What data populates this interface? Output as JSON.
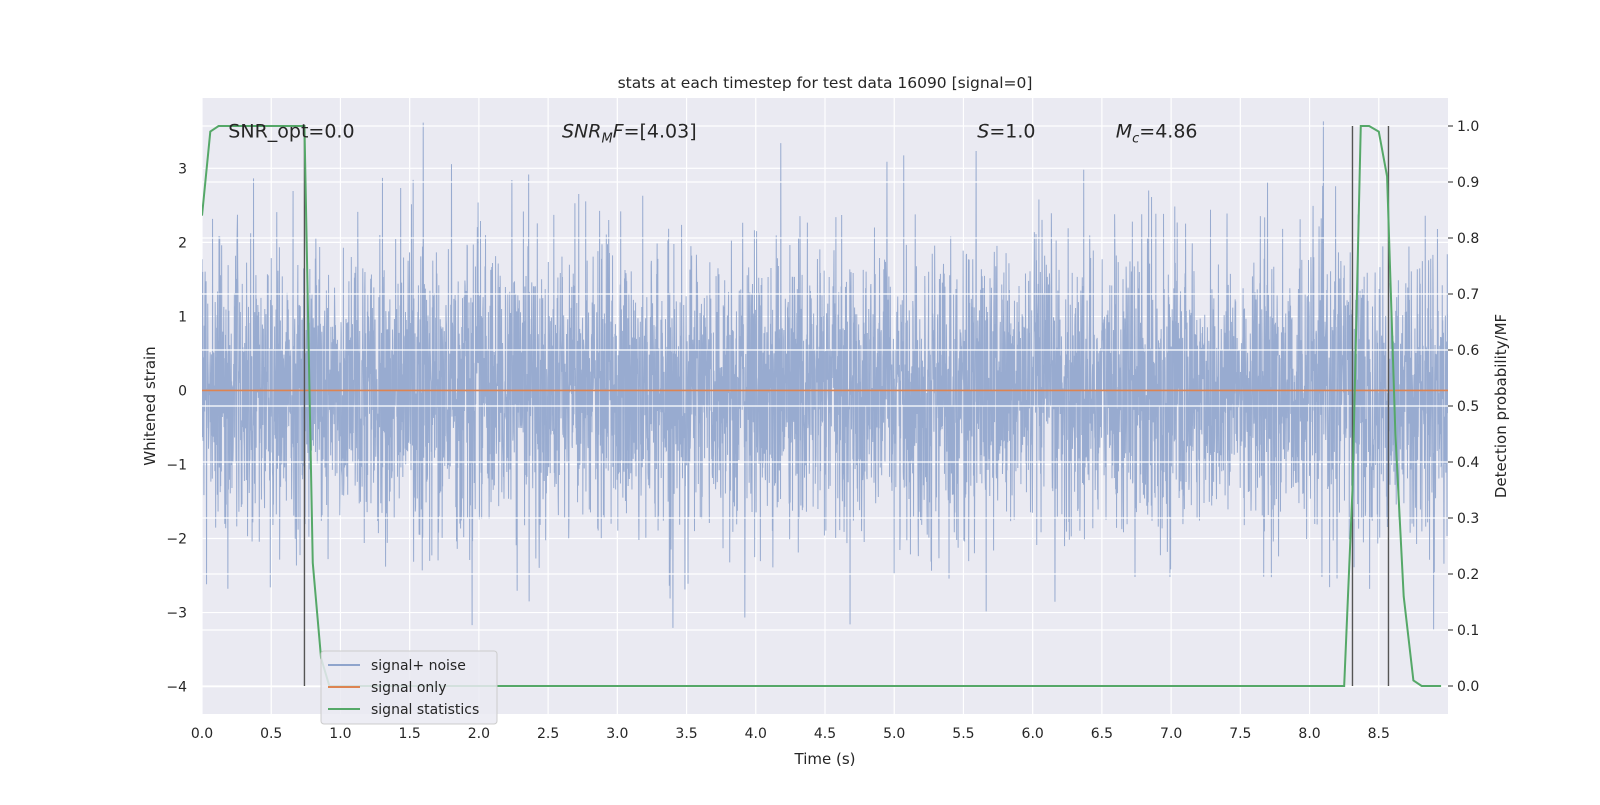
{
  "chart_data": {
    "type": "line",
    "title": "stats at each timestep for test data 16090 [signal=0]",
    "xlabel": "Time (s)",
    "ylabel_left": "Whitened strain",
    "ylabel_right": "Detection probability/MF",
    "xlim": [
      0.0,
      9.0
    ],
    "ylim_left": [
      -4.37,
      3.95
    ],
    "ylim_right": [
      -0.05,
      1.05
    ],
    "x_ticks": [
      "0.0",
      "0.5",
      "1.0",
      "1.5",
      "2.0",
      "2.5",
      "3.0",
      "3.5",
      "4.0",
      "4.5",
      "5.0",
      "5.5",
      "6.0",
      "6.5",
      "7.0",
      "7.5",
      "8.0",
      "8.5"
    ],
    "y_left_ticks": [
      "3",
      "2",
      "1",
      "0",
      "−1",
      "−2",
      "−3",
      "−4"
    ],
    "y_right_ticks": [
      "1.0",
      "0.9",
      "0.8",
      "0.7",
      "0.6",
      "0.5",
      "0.4",
      "0.3",
      "0.2",
      "0.1",
      "0.0"
    ],
    "grid": true,
    "legend_position": "lower-left",
    "annotations": [
      {
        "id": "snr-opt",
        "text": "SNR_opt=0.0",
        "pos": [
          0.19,
          3.5
        ]
      },
      {
        "id": "snr-mf",
        "text": "SNRMF=[4.03]",
        "main": "SNR",
        "sub": "M",
        "rest": "F=[4.03]",
        "italic": true,
        "pos": [
          2.6,
          3.5
        ]
      },
      {
        "id": "s-stat",
        "text": "S=1.0",
        "main": "S",
        "rest": "=1.0",
        "italic": true,
        "pos": [
          5.6,
          3.5
        ]
      },
      {
        "id": "mc",
        "text": "Mc=4.86",
        "main": "M",
        "sub": "c",
        "rest": "=4.86",
        "italic": true,
        "pos": [
          6.6,
          3.5
        ]
      }
    ],
    "vertical_markers": [
      0.74,
      8.31,
      8.57
    ],
    "series": [
      {
        "name": "signal+ noise",
        "color": "#8fa4cc",
        "axis": "left",
        "kind": "noise",
        "sigma": 0.95,
        "x_start": 0.0,
        "x_end": 9.0
      },
      {
        "name": "signal only",
        "color": "#dd8452",
        "axis": "left",
        "x": [
          0.0,
          9.0
        ],
        "y": [
          0.0,
          0.0
        ]
      },
      {
        "name": "signal statistics",
        "color": "#55a868",
        "axis": "right",
        "x": [
          0.0,
          0.06,
          0.12,
          0.19,
          0.25,
          0.31,
          0.38,
          0.44,
          0.5,
          0.56,
          0.62,
          0.69,
          0.74,
          0.8,
          0.86,
          0.92,
          1.0,
          2.0,
          3.0,
          4.0,
          5.0,
          6.0,
          7.0,
          8.0,
          8.25,
          8.31,
          8.37,
          8.43,
          8.5,
          8.56,
          8.62,
          8.68,
          8.75,
          8.81,
          8.87,
          8.95
        ],
        "y": [
          0.84,
          0.99,
          1.0,
          1.0,
          1.0,
          1.0,
          1.0,
          1.0,
          1.0,
          1.0,
          1.0,
          1.0,
          1.0,
          0.22,
          0.05,
          0.0,
          0.0,
          0.0,
          0.0,
          0.0,
          0.0,
          0.0,
          0.0,
          0.0,
          0.0,
          0.35,
          1.0,
          1.0,
          0.99,
          0.91,
          0.45,
          0.16,
          0.01,
          0.0,
          0.0,
          0.0
        ]
      }
    ]
  }
}
